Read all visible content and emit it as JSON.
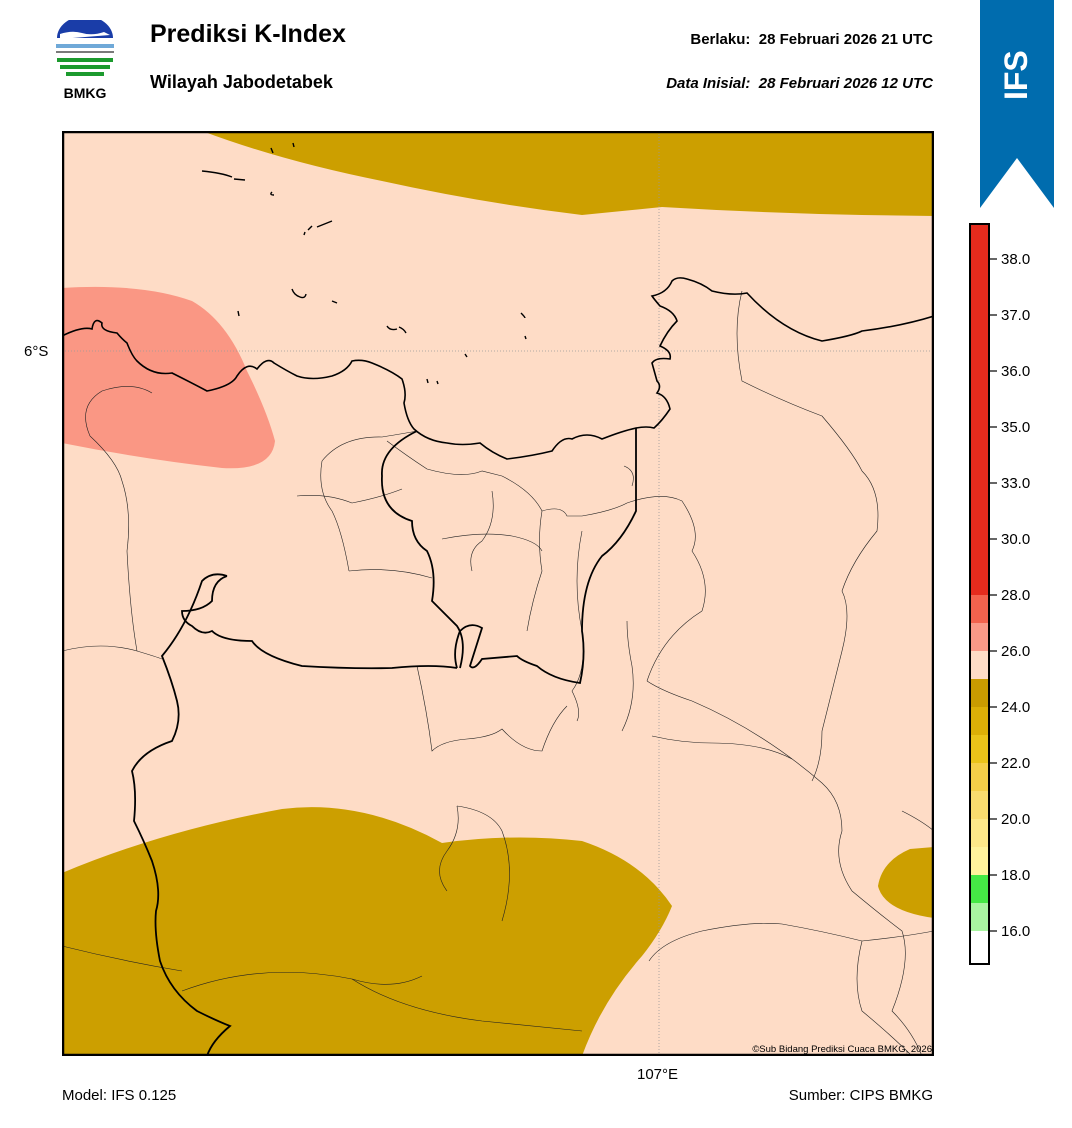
{
  "header": {
    "logo_text": "BMKG",
    "title": "Prediksi K-Index",
    "subtitle": "Wilayah Jabodetabek",
    "valid_label": "Berlaku:",
    "valid_value": "28 Februari 2026 21 UTC",
    "init_label": "Data Inisial:",
    "init_value": "28 Februari 2026 12 UTC",
    "ribbon_text": "IFS"
  },
  "map": {
    "lat_label": "6°S",
    "lon_label": "107°E",
    "copyright": "©Sub Bidang Prediksi Cuaca BMKG, 2026"
  },
  "footer": {
    "model": "Model: IFS 0.125",
    "source": "Sumber: CIPS BMKG"
  },
  "colorbar": {
    "ticks": [
      "16.0",
      "18.0",
      "20.0",
      "22.0",
      "24.0",
      "26.0",
      "28.0",
      "30.0",
      "33.0",
      "35.0",
      "36.0",
      "37.0",
      "38.0"
    ],
    "colors": [
      "#ffffff",
      "#a8f5a0",
      "#45e845",
      "#fff39c",
      "#fde889",
      "#f9dc6e",
      "#f5cf48",
      "#eac319",
      "#dcaf07",
      "#c99b00",
      "#fedcc6",
      "#fa9987",
      "#f2624d",
      "#e42b1d"
    ]
  },
  "legend_colors": {
    "low_band": "#cc9f00",
    "base": "#fedcc6",
    "high_band": "#fa9784",
    "ribbon": "#006cae"
  }
}
